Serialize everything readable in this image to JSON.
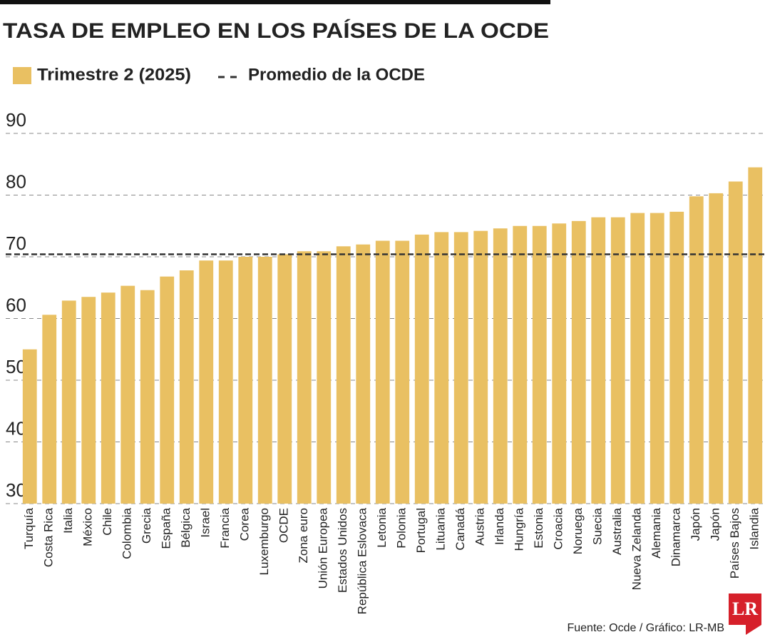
{
  "chart_data": {
    "type": "bar",
    "title": "TASA DE EMPLEO EN LOS PAÍSES DE LA OCDE",
    "categories": [
      "Turquía",
      "Costa Rica",
      "Italia",
      "México",
      "Chile",
      "Colombia",
      "Grecia",
      "España",
      "Bélgica",
      "Israel",
      "Francia",
      "Corea",
      "Luxemburgo",
      "OCDE",
      "Zona euro",
      "Unión Europea",
      "Estados Unidos",
      "República Eslovaca",
      "Letonia",
      "Polonia",
      "Portugal",
      "Lituania",
      "Canadá",
      "Austria",
      "Irlanda",
      "Hungría",
      "Estonia",
      "Croacia",
      "Noruega",
      "Suecia",
      "Australia",
      "Nueva Zelanda",
      "Alemania",
      "Dinamarca",
      "Japón",
      "Japón",
      "Países Bajos",
      "Islandia"
    ],
    "series": [
      {
        "name": "Trimestre 2 (2025)",
        "color": "#e9c062",
        "values": [
          55,
          60.6,
          62.9,
          63.5,
          64.2,
          65.3,
          64.6,
          66.8,
          67.8,
          69.4,
          69.4,
          70.0,
          70.0,
          70.4,
          70.9,
          70.9,
          71.7,
          72.0,
          72.6,
          72.6,
          73.6,
          74.0,
          74.0,
          74.2,
          74.6,
          75.0,
          75.0,
          75.4,
          75.8,
          76.4,
          76.4,
          77.1,
          77.1,
          77.3,
          79.8,
          80.3,
          82.2,
          84.5
        ]
      }
    ],
    "average": {
      "name": "Promedio de la OCDE",
      "value": 70.4,
      "color": "#333333"
    },
    "ylim": [
      30,
      90
    ],
    "yticks": [
      30,
      40,
      50,
      60,
      70,
      80,
      90
    ],
    "grid": true,
    "source": "Fuente: Ocde / Gráfico: LR-MB",
    "logo": "LR"
  }
}
